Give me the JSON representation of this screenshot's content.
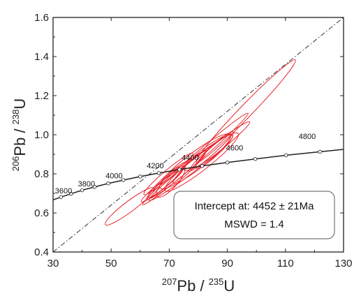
{
  "chart_data": {
    "type": "scatter",
    "xlabel": {
      "sup1": "207",
      "base1": "Pb",
      "sep": " / ",
      "sup2": "235",
      "base2": "U"
    },
    "ylabel": {
      "sup1": "206",
      "base1": "Pb",
      "sep": " / ",
      "sup2": "238",
      "base2": "U"
    },
    "xlim": [
      30,
      130
    ],
    "ylim": [
      0.4,
      1.6
    ],
    "x_ticks": [
      "30",
      "50",
      "70",
      "90",
      "110",
      "130"
    ],
    "y_ticks": [
      "0.4",
      "0.6",
      "0.8",
      "1.0",
      "1.2",
      "1.4",
      "1.6"
    ],
    "grid": false,
    "concordia": {
      "points": [
        [
          29.5,
          0.664
        ],
        [
          32.7,
          0.681
        ],
        [
          36.2,
          0.698
        ],
        [
          40.0,
          0.716
        ],
        [
          44.3,
          0.733
        ],
        [
          49.0,
          0.751
        ],
        [
          54.2,
          0.768
        ],
        [
          60.0,
          0.786
        ],
        [
          66.4,
          0.804
        ],
        [
          73.5,
          0.822
        ],
        [
          81.3,
          0.84
        ],
        [
          90.0,
          0.858
        ],
        [
          99.6,
          0.876
        ],
        [
          110.2,
          0.895
        ],
        [
          121.9,
          0.913
        ],
        [
          130.0,
          0.925
        ]
      ],
      "age_labels": [
        {
          "text": "3600",
          "x": 33.6,
          "y": 0.7
        },
        {
          "text": "3800",
          "x": 41.5,
          "y": 0.736
        },
        {
          "text": "4000",
          "x": 51.0,
          "y": 0.776
        },
        {
          "text": "4200",
          "x": 65.2,
          "y": 0.828
        },
        {
          "text": "4400",
          "x": 77.2,
          "y": 0.869
        },
        {
          "text": "4600",
          "x": 92.5,
          "y": 0.92
        },
        {
          "text": "4800",
          "x": 117.5,
          "y": 0.979
        }
      ]
    },
    "discordia": {
      "x1": 30,
      "y1": 0.4,
      "x2": 130,
      "y2": 1.6
    },
    "error_ellipses": [
      {
        "cx": 56.4,
        "cy": 0.634,
        "rx": 10.5,
        "ry": 0.027,
        "angle_deg": -37
      },
      {
        "cx": 79.0,
        "cy": 0.876,
        "rx": 24.0,
        "ry": 0.022,
        "angle_deg": -41
      },
      {
        "cx": 78.9,
        "cy": 0.864,
        "rx": 15.2,
        "ry": 0.044,
        "angle_deg": -37
      },
      {
        "cx": 96.4,
        "cy": 1.121,
        "rx": 24.5,
        "ry": 0.032,
        "angle_deg": -46
      },
      {
        "cx": 80.4,
        "cy": 0.865,
        "rx": 22.0,
        "ry": 0.026,
        "angle_deg": -38
      },
      {
        "cx": 83.5,
        "cy": 0.91,
        "rx": 10.3,
        "ry": 0.03,
        "angle_deg": -36
      },
      {
        "cx": 85.4,
        "cy": 0.915,
        "rx": 8.5,
        "ry": 0.025,
        "angle_deg": -42
      },
      {
        "cx": 84.4,
        "cy": 0.915,
        "rx": 10.2,
        "ry": 0.018,
        "angle_deg": -42
      },
      {
        "cx": 81.1,
        "cy": 0.86,
        "rx": 16.0,
        "ry": 0.04,
        "angle_deg": -38
      },
      {
        "cx": 72.4,
        "cy": 0.793,
        "rx": 13.0,
        "ry": 0.023,
        "angle_deg": -39
      },
      {
        "cx": 69.7,
        "cy": 0.8,
        "rx": 11.0,
        "ry": 0.021,
        "angle_deg": -40
      },
      {
        "cx": 69.4,
        "cy": 0.77,
        "rx": 9.0,
        "ry": 0.021,
        "angle_deg": -42
      },
      {
        "cx": 67.5,
        "cy": 0.74,
        "rx": 9.0,
        "ry": 0.018,
        "angle_deg": -38
      },
      {
        "cx": 70.5,
        "cy": 0.76,
        "rx": 7.0,
        "ry": 0.033,
        "angle_deg": -48
      },
      {
        "cx": 77.0,
        "cy": 0.835,
        "rx": 8.0,
        "ry": 0.018,
        "angle_deg": -45
      }
    ],
    "annotation": {
      "line1": "Intercept at: 4452 ± 21Ma",
      "line2": "MSWD = 1.4"
    },
    "colors": {
      "ellipse": "#e8232b",
      "curve": "#222222",
      "axis": "#222222",
      "box_border": "#777777"
    }
  }
}
